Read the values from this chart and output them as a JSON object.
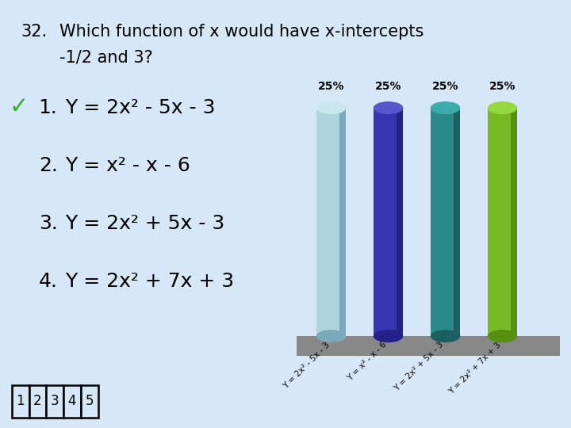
{
  "background_color": "#d6e8f7",
  "title_number": "32.",
  "title_fontsize": 15,
  "options": [
    {
      "num": "1.",
      "formula": "Y = 2x² - 5x - 3",
      "correct": true
    },
    {
      "num": "2.",
      "formula": "Y = x² - x - 6",
      "correct": false
    },
    {
      "num": "3.",
      "formula": "Y = 2x² + 5x - 3",
      "correct": false
    },
    {
      "num": "4.",
      "formula": "Y = 2x² + 7x + 3",
      "correct": false
    }
  ],
  "option_fontsize": 18,
  "bar_values": [
    25,
    25,
    25,
    25
  ],
  "bar_colors": [
    "#aed4dc",
    "#3535b0",
    "#2a8a8a",
    "#78ba25"
  ],
  "bar_dark_colors": [
    "#7aaab8",
    "#22228a",
    "#1a6060",
    "#559010"
  ],
  "bar_top_colors": [
    "#c8e8f0",
    "#5555cc",
    "#3aacac",
    "#95d840"
  ],
  "bar_labels": [
    "Y = 2x² - 5x - 3",
    "Y = x² - x - 6",
    "Y = 2x² + 5x - 3",
    "Y = 2x² + 7x + 3"
  ],
  "bar_label_fontsize": 7.5,
  "percentage_fontsize": 10,
  "checkmark_color": "#28b028",
  "bottom_numbers": [
    "1",
    "2",
    "3",
    "4",
    "5"
  ],
  "platform_color": "#888888"
}
